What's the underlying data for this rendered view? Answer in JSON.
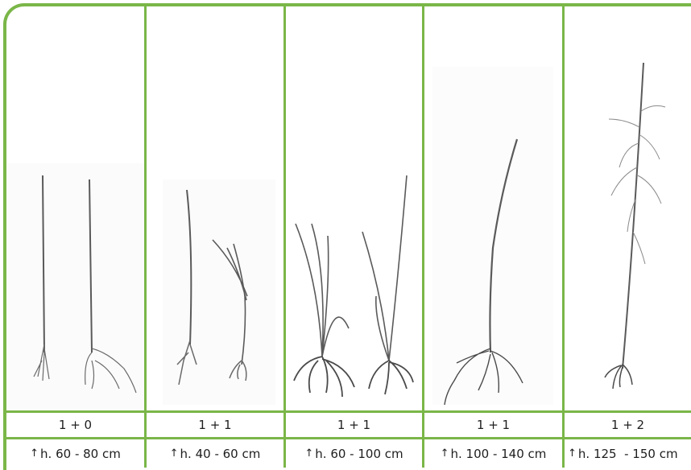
{
  "columns": [
    {
      "age": "1 + 0",
      "height": "h. 60 - 80 cm"
    },
    {
      "age": "1 + 1",
      "height": "h. 40 - 60 cm"
    },
    {
      "age": "1 + 1",
      "height": "h. 60 - 100 cm"
    },
    {
      "age": "1 + 1",
      "height": "h. 100 - 140 cm"
    },
    {
      "age": "1 + 2",
      "height": "h. 125  - 150 cm"
    }
  ],
  "colors": {
    "frame": "#7ab648",
    "text": "#1e1e1e",
    "plant": "#5a5a5a"
  },
  "icons": {
    "height_marker": "up-arrow-icon"
  }
}
